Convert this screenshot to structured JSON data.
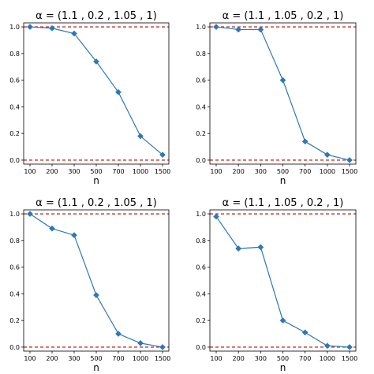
{
  "chart_data": [
    {
      "type": "line",
      "title": "α = (1.1 , 0.2 , 1.05 , 1)",
      "xlabel": "n",
      "ylabel": "",
      "categories": [
        "100",
        "200",
        "300",
        "500",
        "700",
        "1000",
        "1500"
      ],
      "series": [
        {
          "values": [
            1.0,
            0.99,
            0.95,
            0.74,
            0.51,
            0.18,
            0.04
          ]
        }
      ],
      "yticks": [
        "0.0",
        "0.2",
        "0.4",
        "0.6",
        "0.8",
        "1.0"
      ],
      "ylim": [
        -0.03,
        1.03
      ],
      "reference_lines": [
        0.0,
        1.0
      ]
    },
    {
      "type": "line",
      "title": "α = (1.1 , 1.05 , 0.2 , 1)",
      "xlabel": "n",
      "ylabel": "",
      "categories": [
        "100",
        "200",
        "300",
        "500",
        "700",
        "1000",
        "1500"
      ],
      "series": [
        {
          "values": [
            1.0,
            0.98,
            0.98,
            0.6,
            0.14,
            0.04,
            0.0
          ]
        }
      ],
      "yticks": [
        "0.0",
        "0.2",
        "0.4",
        "0.6",
        "0.8",
        "1.0"
      ],
      "ylim": [
        -0.03,
        1.03
      ],
      "reference_lines": [
        0.0,
        1.0
      ]
    },
    {
      "type": "line",
      "title": "α = (1.1 , 0.2 , 1.05 , 1)",
      "xlabel": "n",
      "ylabel": "",
      "categories": [
        "100",
        "200",
        "300",
        "500",
        "700",
        "1000",
        "1500"
      ],
      "series": [
        {
          "values": [
            1.0,
            0.89,
            0.84,
            0.39,
            0.1,
            0.03,
            0.0
          ]
        }
      ],
      "yticks": [
        "0.0",
        "0.2",
        "0.4",
        "0.6",
        "0.8",
        "1.0"
      ],
      "ylim": [
        -0.03,
        1.03
      ],
      "reference_lines": [
        0.0,
        1.0
      ]
    },
    {
      "type": "line",
      "title": "α = (1.1 , 1.05 , 0.2 , 1)",
      "xlabel": "n",
      "ylabel": "",
      "categories": [
        "100",
        "200",
        "300",
        "500",
        "700",
        "1000",
        "1500"
      ],
      "series": [
        {
          "values": [
            0.98,
            0.74,
            0.75,
            0.2,
            0.11,
            0.01,
            0.0
          ]
        }
      ],
      "yticks": [
        "0.0",
        "0.2",
        "0.4",
        "0.6",
        "0.8",
        "1.0"
      ],
      "ylim": [
        -0.03,
        1.03
      ],
      "reference_lines": [
        0.0,
        1.0
      ]
    }
  ],
  "colors": {
    "line": "#2e78b4",
    "reference": "#c4342d",
    "axis": "#000000"
  }
}
